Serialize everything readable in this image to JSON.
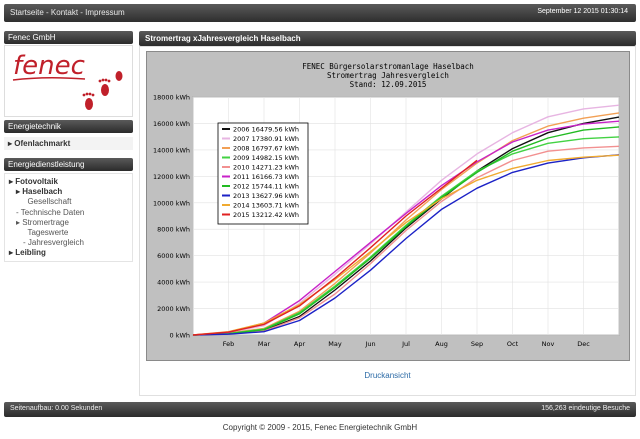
{
  "header": {
    "links": [
      "Startseite",
      "Kontakt",
      "Impressum"
    ],
    "separator": " - ",
    "date": "September 12 2015 01:30:14"
  },
  "sidebar": {
    "company": "Fenec GmbH",
    "logo_text": "fenec",
    "section_energietechnik": "Energietechnik",
    "ofen_item": "Ofenlachmarkt",
    "section_energiedienst": "Energiedienstleistung",
    "nav": [
      {
        "label": "Fotovoltaik",
        "prefix": "▸",
        "level": 0,
        "bold": true
      },
      {
        "label": "Haselbach",
        "prefix": "▸",
        "level": 1,
        "bold": true
      },
      {
        "label": "Gesellschaft",
        "prefix": "",
        "level": 2,
        "bold": false
      },
      {
        "label": "Technische Daten",
        "prefix": "-",
        "level": 1,
        "bold": false
      },
      {
        "label": "Stromertrage",
        "prefix": "▸",
        "level": 1,
        "bold": false
      },
      {
        "label": "Tageswerte",
        "prefix": "",
        "level": 2,
        "bold": false
      },
      {
        "label": "Jahresvergleich",
        "prefix": "-",
        "level": 2,
        "bold": false
      },
      {
        "label": "Leibling",
        "prefix": "▸",
        "level": 0,
        "bold": true
      }
    ]
  },
  "main": {
    "title": "Stromertrag xJahresvergleich Haselbach",
    "print_link": "Druckansicht"
  },
  "chart_data": {
    "type": "line",
    "title_lines": [
      "FENEC Bürgersolarstromanlage Haselbach",
      "Stromertrag Jahresvergleich",
      "Stand: 12.09.2015"
    ],
    "months": [
      "Feb",
      "Mar",
      "Apr",
      "May",
      "Jun",
      "Jul",
      "Aug",
      "Sep",
      "Oct",
      "Nov",
      "Dec"
    ],
    "ylim": [
      0,
      18000
    ],
    "yticks": [
      0,
      2000,
      4000,
      6000,
      8000,
      10000,
      12000,
      14000,
      16000,
      18000
    ],
    "yunit": "kWh",
    "x_points": [
      0,
      1,
      2,
      3,
      4,
      5,
      6,
      7,
      8,
      9,
      10,
      11,
      12
    ],
    "series": [
      {
        "name": "2006",
        "total": "16479.56 kWh",
        "color": "#111111",
        "values": [
          0,
          100,
          350,
          1400,
          3400,
          5600,
          8100,
          10300,
          12400,
          14100,
          15300,
          16000,
          16480
        ]
      },
      {
        "name": "2007",
        "total": "17380.91 kWh",
        "color": "#e7b5e2",
        "values": [
          0,
          180,
          700,
          2400,
          4600,
          6900,
          9300,
          11700,
          13700,
          15300,
          16500,
          17100,
          17380
        ]
      },
      {
        "name": "2008",
        "total": "16797.67 kWh",
        "color": "#f2a055",
        "values": [
          0,
          150,
          500,
          1800,
          3900,
          6200,
          8700,
          11000,
          13000,
          14700,
          15800,
          16400,
          16800
        ]
      },
      {
        "name": "2009",
        "total": "14982.15 kWh",
        "color": "#43d243",
        "values": [
          0,
          120,
          450,
          1700,
          3700,
          5900,
          8300,
          10500,
          12400,
          13700,
          14500,
          14850,
          14980
        ]
      },
      {
        "name": "2010",
        "total": "14271.23 kWh",
        "color": "#f29090",
        "values": [
          0,
          80,
          300,
          1300,
          3100,
          5400,
          7900,
          10100,
          11900,
          13200,
          13900,
          14150,
          14270
        ]
      },
      {
        "name": "2011",
        "total": "16166.73 kWh",
        "color": "#c822c8",
        "values": [
          0,
          200,
          900,
          2600,
          4800,
          7000,
          9200,
          11300,
          13100,
          14600,
          15500,
          15950,
          16170
        ]
      },
      {
        "name": "2012",
        "total": "15744.11 kWh",
        "color": "#22bb22",
        "values": [
          0,
          90,
          400,
          1600,
          3600,
          5800,
          8200,
          10400,
          12300,
          13900,
          14900,
          15500,
          15740
        ]
      },
      {
        "name": "2013",
        "total": "13627.96 kWh",
        "color": "#1c22c6",
        "values": [
          0,
          60,
          250,
          1100,
          2800,
          4900,
          7300,
          9500,
          11100,
          12300,
          13000,
          13400,
          13630
        ]
      },
      {
        "name": "2014",
        "total": "13603.71 kWh",
        "color": "#f0aa30",
        "values": [
          0,
          250,
          900,
          2300,
          4200,
          6300,
          8500,
          10300,
          11700,
          12600,
          13200,
          13450,
          13600
        ]
      },
      {
        "name": "2015",
        "total": "13212.42 kWh",
        "color": "#e02222",
        "values": [
          0,
          220,
          800,
          2200,
          4300,
          6600,
          9000,
          11100,
          13212
        ]
      }
    ]
  },
  "footer": {
    "load_time": "Seitenaufbau: 0.00 Sekunden",
    "visitors": "156,263 eindeutige Besuche",
    "copyright": "Copyright © 2009 - 2015, Fenec Energietechnik GmbH"
  },
  "colors": {
    "bar_dark": "#2e2e2e",
    "chart_bg": "#c0c0c0",
    "plot_bg": "#ffffff",
    "link": "#2b6aa6",
    "logo": "#c0202a"
  }
}
